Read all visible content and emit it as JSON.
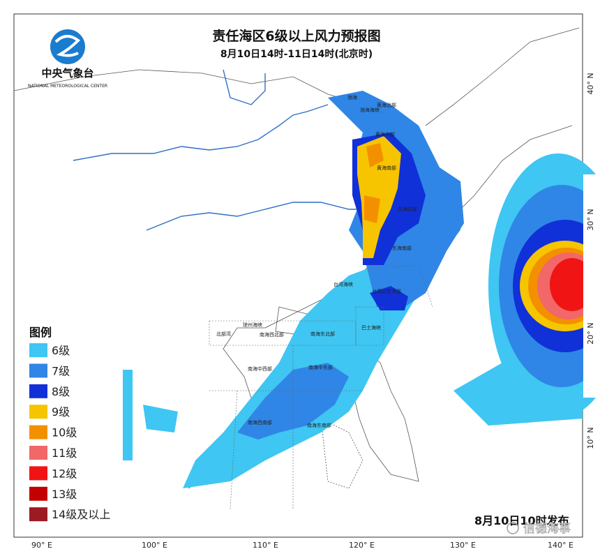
{
  "header": {
    "logo_name": "中央气象台",
    "logo_english": "NATIONAL METEOROLOGICAL CENTER",
    "title": "责任海区6级以上风力预报图",
    "subtitle": "8月10日14时-11日14时(北京时)"
  },
  "legend": {
    "title": "图例",
    "items": [
      {
        "label": "6级",
        "color": "#3fc6f2"
      },
      {
        "label": "7级",
        "color": "#2f86e6"
      },
      {
        "label": "8级",
        "color": "#1030d8"
      },
      {
        "label": "9级",
        "color": "#f7c400"
      },
      {
        "label": "10级",
        "color": "#f39000"
      },
      {
        "label": "11级",
        "color": "#f26767"
      },
      {
        "label": "12级",
        "color": "#f01414"
      },
      {
        "label": "13级",
        "color": "#c30000"
      },
      {
        "label": "14级及以上",
        "color": "#9c1b22"
      }
    ]
  },
  "regions": [
    "渤海",
    "渤海海峡",
    "黄海北部",
    "黄海中部",
    "黄海南部",
    "东海北部",
    "东海南部",
    "台湾海峡",
    "台湾以东洋面",
    "巴士海峡",
    "北部湾",
    "琼州海峡",
    "南海西北部",
    "南海东北部",
    "南海中西部",
    "南海中东部",
    "南海西南部",
    "南海东南部"
  ],
  "longitude_labels": [
    "90° E",
    "100° E",
    "110° E",
    "120° E",
    "130° E",
    "140° E"
  ],
  "latitude_labels": [
    "40° N",
    "30° N",
    "20° N",
    "10° N"
  ],
  "issued": "8月10日10时发布",
  "watermark": "信德海事"
}
